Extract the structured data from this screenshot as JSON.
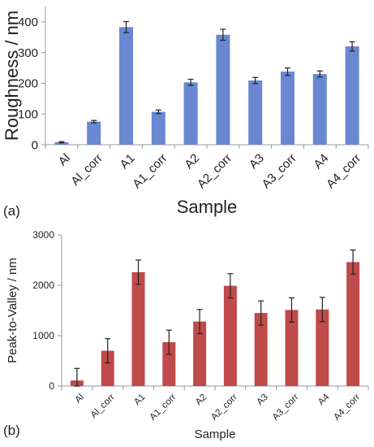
{
  "panels": {
    "a_label": "(a)",
    "b_label": "(b)"
  },
  "chart_data": [
    {
      "type": "bar",
      "panel": "(a)",
      "categories": [
        "Al",
        "Al_corr",
        "A1",
        "A1_corr",
        "A2",
        "A2_corr",
        "A3",
        "A3_corr",
        "A4",
        "A4_corr"
      ],
      "series": [
        {
          "values": [
            8,
            75,
            383,
            107,
            203,
            358,
            209,
            238,
            230,
            320
          ],
          "errors": [
            2,
            4,
            18,
            6,
            10,
            18,
            10,
            12,
            10,
            15
          ]
        }
      ],
      "title": "",
      "xlabel": "Sample",
      "ylabel": "Roughness / nm",
      "ylim": [
        0,
        450
      ],
      "yticks": [
        0,
        100,
        200,
        300,
        400
      ],
      "grid": false,
      "bar_color": "#6a87d2"
    },
    {
      "type": "bar",
      "panel": "(b)",
      "categories": [
        "Al",
        "Al_corr",
        "A1",
        "A1_corr",
        "A2",
        "A2_corr",
        "A3",
        "A3_corr",
        "A4",
        "A4_corr"
      ],
      "series": [
        {
          "values": [
            110,
            700,
            2260,
            870,
            1280,
            1990,
            1450,
            1510,
            1520,
            2460
          ],
          "errors": [
            240,
            240,
            240,
            240,
            240,
            240,
            240,
            240,
            240,
            240
          ]
        }
      ],
      "title": "",
      "xlabel": "Sample",
      "ylabel": "Peak-to-Valley / nm",
      "ylim": [
        0,
        3000
      ],
      "yticks": [
        0,
        1000,
        2000,
        3000
      ],
      "grid": false,
      "bar_color": "#c14a4a"
    }
  ]
}
